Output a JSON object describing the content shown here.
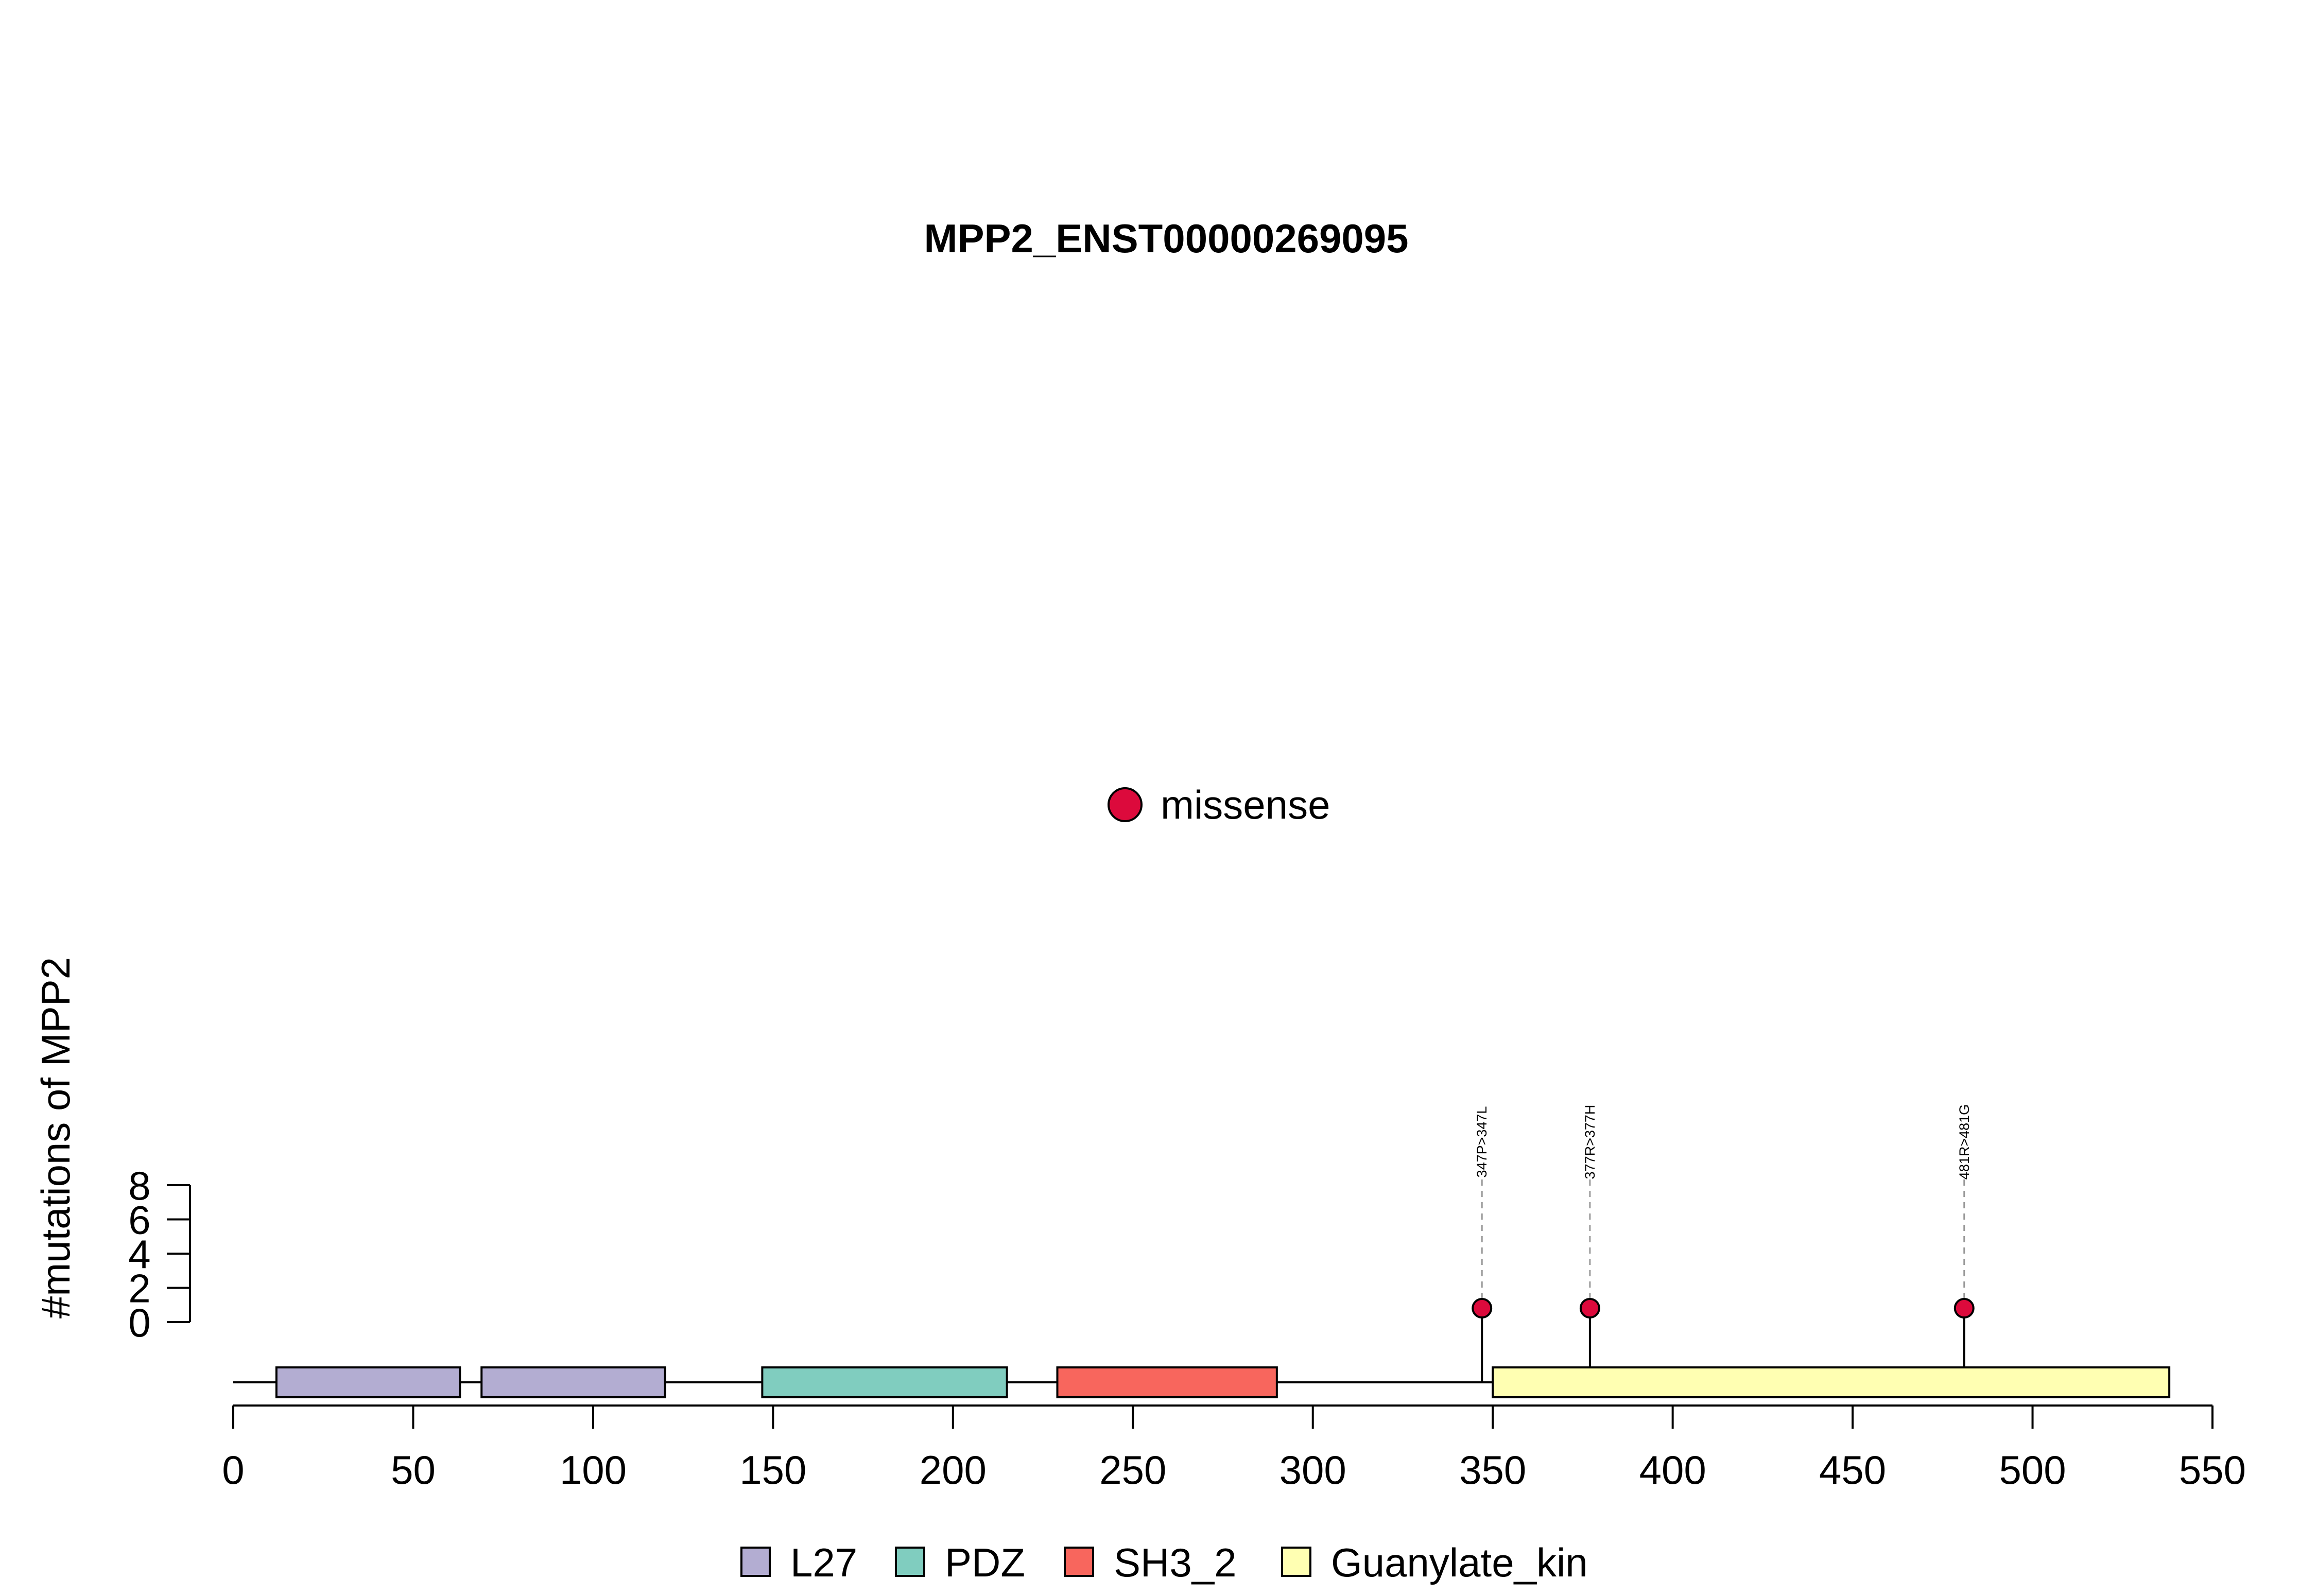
{
  "chart_data": {
    "type": "lollipop",
    "title": "MPP2_ENST00000269095",
    "xlabel": "",
    "ylabel": "#mutations of MPP2",
    "xlim": [
      0,
      550
    ],
    "ylim": [
      0,
      8
    ],
    "x_ticks": [
      0,
      50,
      100,
      150,
      200,
      250,
      300,
      350,
      400,
      450,
      500,
      550
    ],
    "y_ticks": [
      0,
      2,
      4,
      6,
      8
    ],
    "protein_length": 538,
    "domains": [
      {
        "name": "L27",
        "start": 12,
        "end": 63,
        "color": "#B3ADD2"
      },
      {
        "name": "L27",
        "start": 69,
        "end": 120,
        "color": "#B3ADD2"
      },
      {
        "name": "PDZ",
        "start": 147,
        "end": 215,
        "color": "#80CDBF"
      },
      {
        "name": "SH3_2",
        "start": 229,
        "end": 290,
        "color": "#F8665D"
      },
      {
        "name": "Guanylate_kin",
        "start": 350,
        "end": 538,
        "color": "#FFFFB2"
      }
    ],
    "mutations": [
      {
        "position": 347,
        "count": 1,
        "type": "missense",
        "label": "347P>347L"
      },
      {
        "position": 377,
        "count": 1,
        "type": "missense",
        "label": "377R>377H"
      },
      {
        "position": 481,
        "count": 1,
        "type": "missense",
        "label": "481R>481G"
      }
    ],
    "mutation_legend": [
      {
        "label": "missense",
        "color": "#DC0A3C"
      }
    ],
    "domain_legend": [
      {
        "label": "L27",
        "color": "#B3ADD2"
      },
      {
        "label": "PDZ",
        "color": "#80CDBF"
      },
      {
        "label": "SH3_2",
        "color": "#F8665D"
      },
      {
        "label": "Guanylate_kin",
        "color": "#FFFFB2"
      }
    ]
  }
}
